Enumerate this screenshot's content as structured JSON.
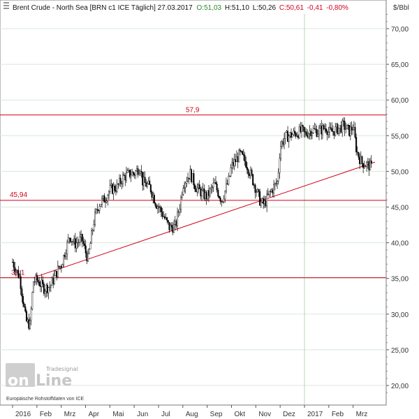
{
  "header": {
    "instrument": "Brent Crude - North Sea [BRN c1 ICE  Täglich] 27.03.2017",
    "open": "O:51,03",
    "high": "H:51,10",
    "low": "L:50,26",
    "close": "C:50,61",
    "change": "-0,41",
    "change_pct": "-0,80%"
  },
  "unit": "$/Bbl",
  "watermark": {
    "brand_small": "Tradesignal",
    "brand_big_a": "on",
    "brand_big_b": "Line",
    "source": "Europäische Rohstoffdaten von ICE"
  },
  "colors": {
    "candle": "#000000",
    "support_line": "#d0021b",
    "grid": "#d8e8d8",
    "header_up": "#2a8a2a",
    "header_down": "#d0021b"
  },
  "chart_data": {
    "type": "candlestick",
    "ylim": [
      18,
      74
    ],
    "y_ticks": [
      20,
      25,
      30,
      35,
      40,
      45,
      50,
      55,
      60,
      65,
      70
    ],
    "y_tick_labels": [
      "20,00",
      "25,00",
      "30,00",
      "35,00",
      "40,00",
      "45,00",
      "50,00",
      "55,00",
      "60,00",
      "65,00",
      "70,00"
    ],
    "x_tick_labels": [
      "2016",
      "Feb",
      "Mrz",
      "Apr",
      "Mai",
      "Jun",
      "Jul",
      "Aug",
      "Sep",
      "Okt",
      "Nov",
      "Dez",
      "2017",
      "Feb",
      "Mrz"
    ],
    "x_ticks_month_index": [
      0,
      1,
      2,
      3,
      4,
      5,
      6,
      7,
      8,
      9,
      10,
      11,
      12,
      13,
      14
    ],
    "month_span": 14.9,
    "price_path": [
      [
        0.0,
        37.3
      ],
      [
        0.3,
        35.1
      ],
      [
        0.55,
        29.0
      ],
      [
        0.72,
        28.5
      ],
      [
        0.85,
        34.6
      ],
      [
        1.0,
        34.8
      ],
      [
        1.3,
        33.6
      ],
      [
        1.55,
        33.9
      ],
      [
        1.9,
        36.5
      ],
      [
        2.0,
        36.9
      ],
      [
        2.35,
        41.0
      ],
      [
        2.55,
        39.8
      ],
      [
        2.85,
        40.5
      ],
      [
        3.0,
        38.7
      ],
      [
        3.1,
        37.7
      ],
      [
        3.35,
        43.2
      ],
      [
        3.55,
        45.4
      ],
      [
        3.8,
        46.2
      ],
      [
        4.0,
        47.4
      ],
      [
        4.3,
        47.8
      ],
      [
        4.55,
        49.2
      ],
      [
        4.85,
        49.7
      ],
      [
        5.0,
        49.7
      ],
      [
        5.25,
        50.7
      ],
      [
        5.35,
        48.5
      ],
      [
        5.65,
        47.8
      ],
      [
        5.9,
        45.5
      ],
      [
        6.0,
        45.1
      ],
      [
        6.45,
        42.1
      ],
      [
        6.7,
        42.3
      ],
      [
        6.9,
        45.7
      ],
      [
        7.0,
        48.2
      ],
      [
        7.3,
        49.7
      ],
      [
        7.55,
        47.7
      ],
      [
        7.9,
        46.6
      ],
      [
        8.0,
        46.5
      ],
      [
        8.3,
        48.2
      ],
      [
        8.6,
        45.9
      ],
      [
        8.9,
        48.9
      ],
      [
        9.0,
        50.7
      ],
      [
        9.35,
        52.4
      ],
      [
        9.6,
        51.2
      ],
      [
        9.85,
        49.0
      ],
      [
        10.0,
        47.6
      ],
      [
        10.2,
        45.6
      ],
      [
        10.35,
        45.4
      ],
      [
        10.55,
        46.8
      ],
      [
        10.9,
        48.6
      ],
      [
        11.0,
        53.5
      ],
      [
        11.2,
        54.8
      ],
      [
        11.45,
        55.1
      ],
      [
        11.7,
        55.4
      ],
      [
        11.9,
        55.7
      ],
      [
        12.0,
        55.2
      ],
      [
        12.3,
        55.8
      ],
      [
        12.55,
        55.6
      ],
      [
        12.9,
        56.2
      ],
      [
        13.0,
        55.4
      ],
      [
        13.35,
        55.9
      ],
      [
        13.6,
        56.4
      ],
      [
        13.85,
        55.6
      ],
      [
        14.0,
        56.3
      ],
      [
        14.15,
        52.8
      ],
      [
        14.35,
        51.2
      ],
      [
        14.6,
        50.9
      ],
      [
        14.75,
        50.6
      ]
    ],
    "candles": [],
    "levels": [
      {
        "value": 57.9,
        "label": "57,9"
      },
      {
        "value": 45.94,
        "label": "45,94"
      },
      {
        "value": 35.1,
        "label": "35,1"
      }
    ],
    "trendline": {
      "from": [
        0.84,
        35.1
      ],
      "to": [
        14.9,
        51.3
      ]
    },
    "vertical_markers_month_index": [
      12
    ],
    "grid": true,
    "y_axis_side": "right"
  }
}
